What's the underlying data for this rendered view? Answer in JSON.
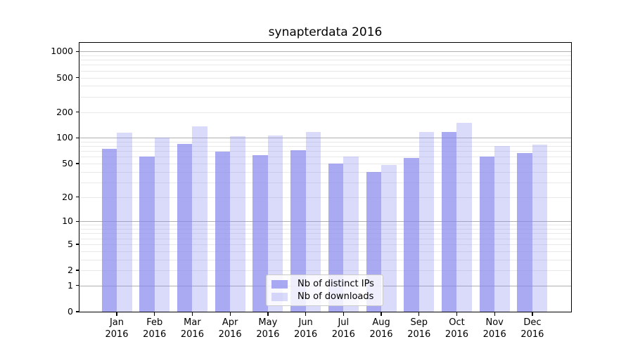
{
  "title": "synapterdata 2016",
  "chart_data": {
    "type": "bar",
    "title": "synapterdata 2016",
    "categories": [
      "Jan 2016",
      "Feb 2016",
      "Mar 2016",
      "Apr 2016",
      "May 2016",
      "Jun 2016",
      "Jul 2016",
      "Aug 2016",
      "Sep 2016",
      "Oct 2016",
      "Nov 2016",
      "Dec 2016"
    ],
    "series": [
      {
        "name": "Nb of distinct IPs",
        "color": "#8686EE",
        "alpha": 0.7,
        "values": [
          75,
          60,
          85,
          69,
          63,
          72,
          50,
          40,
          58,
          118,
          60,
          66
        ]
      },
      {
        "name": "Nb of downloads",
        "color": "#8686EE",
        "alpha": 0.3,
        "values": [
          114,
          100,
          136,
          104,
          107,
          118,
          60,
          48,
          118,
          150,
          81,
          83
        ]
      }
    ],
    "yscale": "log1p",
    "y_ticks": [
      0,
      1,
      2,
      5,
      10,
      20,
      50,
      100,
      200,
      500,
      1000
    ],
    "ylim": [
      0,
      1260
    ],
    "xlabel": "",
    "ylabel": "",
    "grid": true,
    "legend_position": "inside-lower-center",
    "colors": {
      "axis": "#000000",
      "grid_major": "#b0b0b0",
      "grid_minor": "#e9e9e9",
      "legend_border": "#cbcbcb",
      "text": "#000000"
    }
  }
}
